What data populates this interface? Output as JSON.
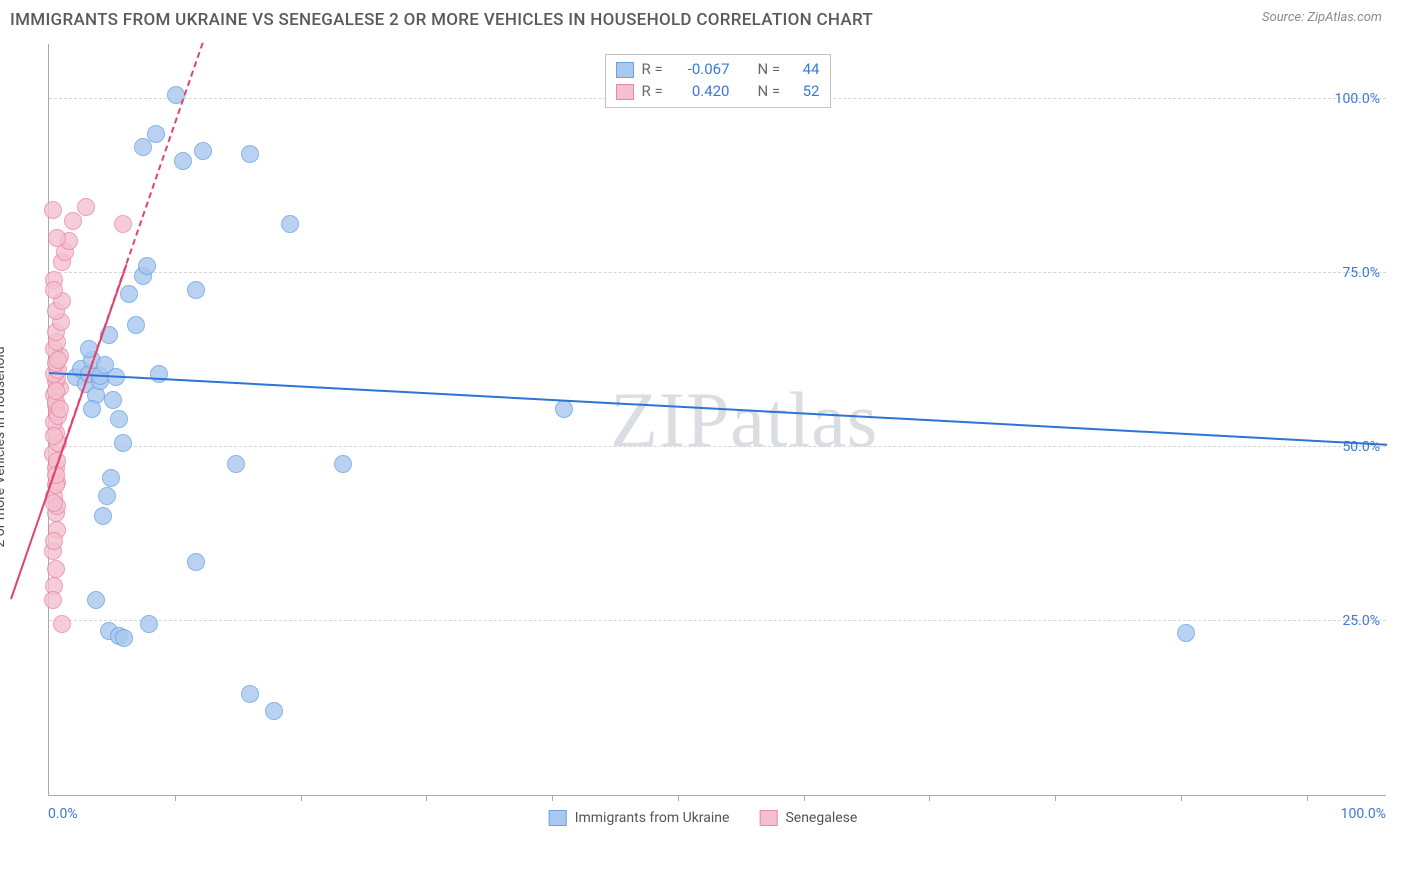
{
  "title": "IMMIGRANTS FROM UKRAINE VS SENEGALESE 2 OR MORE VEHICLES IN HOUSEHOLD CORRELATION CHART",
  "source_label": "Source: ZipAtlas.com",
  "y_axis_label": "2 or more Vehicles in Household",
  "watermark": "ZIPatlas",
  "chart": {
    "type": "scatter",
    "background_color": "#ffffff",
    "grid_color": "#d6d6d6",
    "axis_color": "#aaaaaa",
    "title_fontsize": 17,
    "label_fontsize": 14,
    "tick_color": "#3b79d6",
    "xlim": [
      0,
      100
    ],
    "ylim": [
      0,
      108
    ],
    "x_ticks": [
      0,
      100
    ],
    "x_tick_labels": [
      "0.0%",
      "100.0%"
    ],
    "y_ticks": [
      25,
      50,
      75,
      100
    ],
    "y_tick_labels": [
      "25.0%",
      "50.0%",
      "75.0%",
      "100.0%"
    ],
    "x_minor_ticks": [
      9.4,
      18.8,
      28.2,
      37.6,
      47,
      56.4,
      65.8,
      75.2,
      84.6,
      94
    ],
    "marker_radius": 9,
    "marker_border_width": 1.2,
    "fill_opacity": 0.35,
    "series": [
      {
        "name": "Immigrants from Ukraine",
        "color_fill": "#a8c8ef",
        "color_border": "#6ba3e0",
        "r": "-0.067",
        "n": "44",
        "trend": {
          "x1": 0,
          "y1": 60.5,
          "x2": 100,
          "y2": 50.2,
          "color": "#2d74d6",
          "width": 2.4,
          "dash": "none"
        },
        "points": [
          [
            2.0,
            60.0
          ],
          [
            2.4,
            61.2
          ],
          [
            2.8,
            59.0
          ],
          [
            3.0,
            60.5
          ],
          [
            3.2,
            62.5
          ],
          [
            3.5,
            57.5
          ],
          [
            3.8,
            59.5
          ],
          [
            3.8,
            60.2
          ],
          [
            4.2,
            61.8
          ],
          [
            4.5,
            66.0
          ],
          [
            5.0,
            60.0
          ],
          [
            5.2,
            54.0
          ],
          [
            5.5,
            50.5
          ],
          [
            6.0,
            72.0
          ],
          [
            6.5,
            67.5
          ],
          [
            7.0,
            74.5
          ],
          [
            7.3,
            76.0
          ],
          [
            7.0,
            93.0
          ],
          [
            8.0,
            95.0
          ],
          [
            9.5,
            100.5
          ],
          [
            10.0,
            91.0
          ],
          [
            11.5,
            92.5
          ],
          [
            15.0,
            92.0
          ],
          [
            18.0,
            82.0
          ],
          [
            11.0,
            72.5
          ],
          [
            4.0,
            40.0
          ],
          [
            4.3,
            43.0
          ],
          [
            4.6,
            45.5
          ],
          [
            11.0,
            33.5
          ],
          [
            14.0,
            47.5
          ],
          [
            22.0,
            47.5
          ],
          [
            3.5,
            28.0
          ],
          [
            4.5,
            23.5
          ],
          [
            5.2,
            22.8
          ],
          [
            5.6,
            22.5
          ],
          [
            7.5,
            24.5
          ],
          [
            15.0,
            14.5
          ],
          [
            16.8,
            12.0
          ],
          [
            85.0,
            23.2
          ],
          [
            3.0,
            64.0
          ],
          [
            8.2,
            60.5
          ],
          [
            38.5,
            55.5
          ],
          [
            3.2,
            55.5
          ],
          [
            4.8,
            56.8
          ]
        ]
      },
      {
        "name": "Senegalese",
        "color_fill": "#f4c0cf",
        "color_border": "#e98aa7",
        "r": "0.420",
        "n": "52",
        "trend": {
          "x1": 0,
          "y1": 44.0,
          "x2": 11.5,
          "y2": 108.0,
          "color": "#e2436f",
          "width": 2.0,
          "dash": "4 3",
          "solid_from_y": 28,
          "solid_to_y": 76
        },
        "points": [
          [
            0.4,
            30.0
          ],
          [
            0.3,
            35.0
          ],
          [
            0.6,
            38.0
          ],
          [
            0.5,
            40.5
          ],
          [
            0.4,
            43.0
          ],
          [
            0.6,
            45.0
          ],
          [
            0.5,
            47.0
          ],
          [
            0.3,
            49.0
          ],
          [
            0.7,
            50.5
          ],
          [
            0.5,
            52.0
          ],
          [
            0.4,
            53.5
          ],
          [
            0.6,
            55.0
          ],
          [
            0.5,
            56.0
          ],
          [
            0.4,
            57.5
          ],
          [
            0.8,
            58.5
          ],
          [
            0.5,
            59.5
          ],
          [
            0.6,
            60.0
          ],
          [
            0.4,
            60.5
          ],
          [
            0.7,
            61.0
          ],
          [
            0.5,
            62.0
          ],
          [
            0.8,
            63.0
          ],
          [
            0.4,
            64.0
          ],
          [
            0.6,
            65.0
          ],
          [
            0.5,
            66.5
          ],
          [
            0.9,
            68.0
          ],
          [
            0.5,
            69.5
          ],
          [
            1.0,
            71.0
          ],
          [
            0.4,
            74.0
          ],
          [
            1.0,
            76.5
          ],
          [
            1.2,
            78.0
          ],
          [
            1.5,
            79.5
          ],
          [
            0.6,
            80.0
          ],
          [
            1.8,
            82.5
          ],
          [
            2.8,
            84.5
          ],
          [
            0.3,
            84.0
          ],
          [
            5.5,
            82.0
          ],
          [
            0.4,
            72.5
          ],
          [
            0.5,
            44.5
          ],
          [
            0.6,
            41.5
          ],
          [
            0.4,
            36.5
          ],
          [
            0.5,
            32.5
          ],
          [
            0.3,
            28.0
          ],
          [
            1.0,
            24.5
          ],
          [
            0.5,
            56.5
          ],
          [
            0.7,
            54.5
          ],
          [
            0.4,
            51.5
          ],
          [
            0.6,
            48.0
          ],
          [
            0.5,
            46.0
          ],
          [
            0.4,
            42.0
          ],
          [
            0.8,
            55.5
          ],
          [
            0.5,
            58.0
          ],
          [
            0.7,
            62.5
          ]
        ]
      }
    ],
    "stats_box": {
      "r_label": "R =",
      "n_label": "N ="
    },
    "legend": {
      "items": [
        "Immigrants from Ukraine",
        "Senegalese"
      ]
    }
  }
}
